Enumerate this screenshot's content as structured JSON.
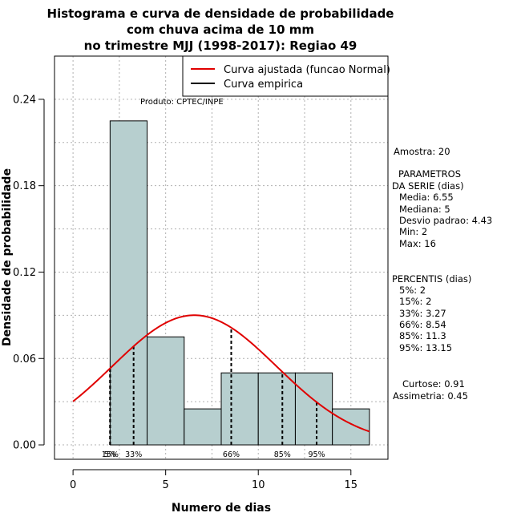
{
  "chart_data": {
    "type": "bar",
    "title_lines": [
      "Histograma e curva de densidade de probabilidade",
      "com chuva acima de 10 mm",
      "no trimestre MJJ (1998-2017): Regiao 49"
    ],
    "xlabel": "Numero de dias",
    "ylabel": "Densidade de probabilidade",
    "xlim": [
      -1,
      17
    ],
    "ylim": [
      -0.01,
      0.27
    ],
    "x_ticks": [
      0,
      5,
      10,
      15
    ],
    "y_ticks": [
      0.0,
      0.06,
      0.12,
      0.18,
      0.24
    ],
    "y_tick_labels": [
      "0.00",
      "0.06",
      "0.12",
      "0.18",
      "0.24"
    ],
    "bins": [
      {
        "start": 2,
        "end": 4,
        "density": 0.225
      },
      {
        "start": 4,
        "end": 6,
        "density": 0.075
      },
      {
        "start": 6,
        "end": 8,
        "density": 0.025
      },
      {
        "start": 8,
        "end": 10,
        "density": 0.05
      },
      {
        "start": 10,
        "end": 12,
        "density": 0.05
      },
      {
        "start": 12,
        "end": 14,
        "density": 0.05
      },
      {
        "start": 14,
        "end": 16,
        "density": 0.025
      }
    ],
    "normal_fit": {
      "mean": 6.55,
      "sd": 4.43,
      "x_from": 0,
      "x_to": 16,
      "color": "#e00000"
    },
    "grid": true,
    "grid_color": "#b0b0b0",
    "bar_fill": "#b7cfcf",
    "legend": {
      "placement": "top-right",
      "entries": [
        {
          "label": "Curva ajustada (funcao Normal)",
          "color": "#e00000"
        },
        {
          "label": "Curva empirica",
          "color": "#000000"
        }
      ]
    },
    "credit": "Produto: CPTEC/INPE",
    "percentile_lines": [
      {
        "label": "5%",
        "x": 2
      },
      {
        "label": "15%",
        "x": 2
      },
      {
        "label": "33%",
        "x": 3.27
      },
      {
        "label": "66%",
        "x": 8.54
      },
      {
        "label": "85%",
        "x": 11.3
      },
      {
        "label": "95%",
        "x": 13.15
      }
    ],
    "side_panel": {
      "amostra": "Amostra: 20",
      "parametros_title_1": "PARAMETROS",
      "parametros_title_2": "DA SERIE (dias)",
      "media": "Media: 6.55",
      "mediana": "Mediana: 5",
      "desvio": "Desvio padrao: 4.43",
      "min": "Min: 2",
      "max": "Max: 16",
      "percentis_title": "PERCENTIS (dias)",
      "p5": "5%: 2",
      "p15": "15%: 2",
      "p33": "33%: 3.27",
      "p66": "66%: 8.54",
      "p85": "85%: 11.3",
      "p95": "95%: 13.15",
      "curtose": "Curtose: 0.91",
      "assimetria": "Assimetria: 0.45"
    }
  }
}
